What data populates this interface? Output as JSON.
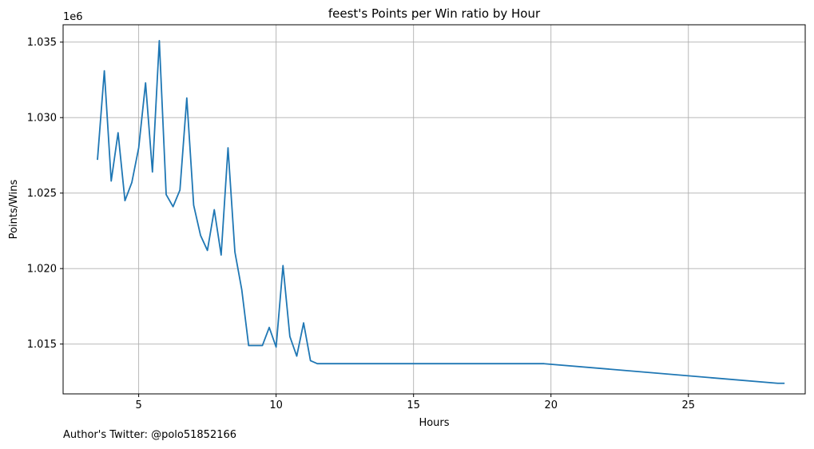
{
  "chart_data": {
    "type": "line",
    "title": "feest's Points per Win ratio by Hour",
    "xlabel": "Hours",
    "ylabel": "Points/Wins",
    "y_offset_label": "1e6",
    "xlim": [
      2.25,
      29.25
    ],
    "ylim": [
      1011700,
      1036150
    ],
    "x_ticks": [
      5,
      10,
      15,
      20,
      25
    ],
    "x_tick_labels": [
      "5",
      "10",
      "15",
      "20",
      "25"
    ],
    "y_ticks": [
      1015000,
      1020000,
      1025000,
      1030000,
      1035000
    ],
    "y_tick_labels": [
      "1.015",
      "1.020",
      "1.025",
      "1.030",
      "1.035"
    ],
    "grid": true,
    "color": "#1f77b4",
    "series": [
      {
        "x": [
          3.5,
          3.75,
          4.0,
          4.25,
          4.5,
          4.75,
          5.0,
          5.25,
          5.5,
          5.75,
          6.0,
          6.25,
          6.5,
          6.75,
          7.0,
          7.25,
          7.5,
          7.75,
          8.0,
          8.25,
          8.5,
          8.75,
          9.0,
          9.25,
          9.5,
          9.75,
          10.0,
          10.25,
          10.5,
          10.75,
          11.0,
          11.25,
          11.5,
          19.75,
          28.25,
          28.5
        ],
        "y": [
          1027200,
          1033100,
          1025800,
          1029000,
          1024500,
          1025700,
          1028000,
          1032300,
          1026400,
          1035100,
          1024900,
          1024100,
          1025200,
          1031300,
          1024200,
          1022200,
          1021200,
          1023900,
          1020900,
          1028000,
          1021100,
          1018600,
          1014900,
          1014900,
          1014900,
          1016100,
          1014800,
          1020200,
          1015500,
          1014200,
          1016400,
          1013900,
          1013700,
          1013700,
          1012400,
          1012400
        ]
      }
    ]
  },
  "footer": {
    "text": "Author's Twitter: @polo51852166"
  }
}
